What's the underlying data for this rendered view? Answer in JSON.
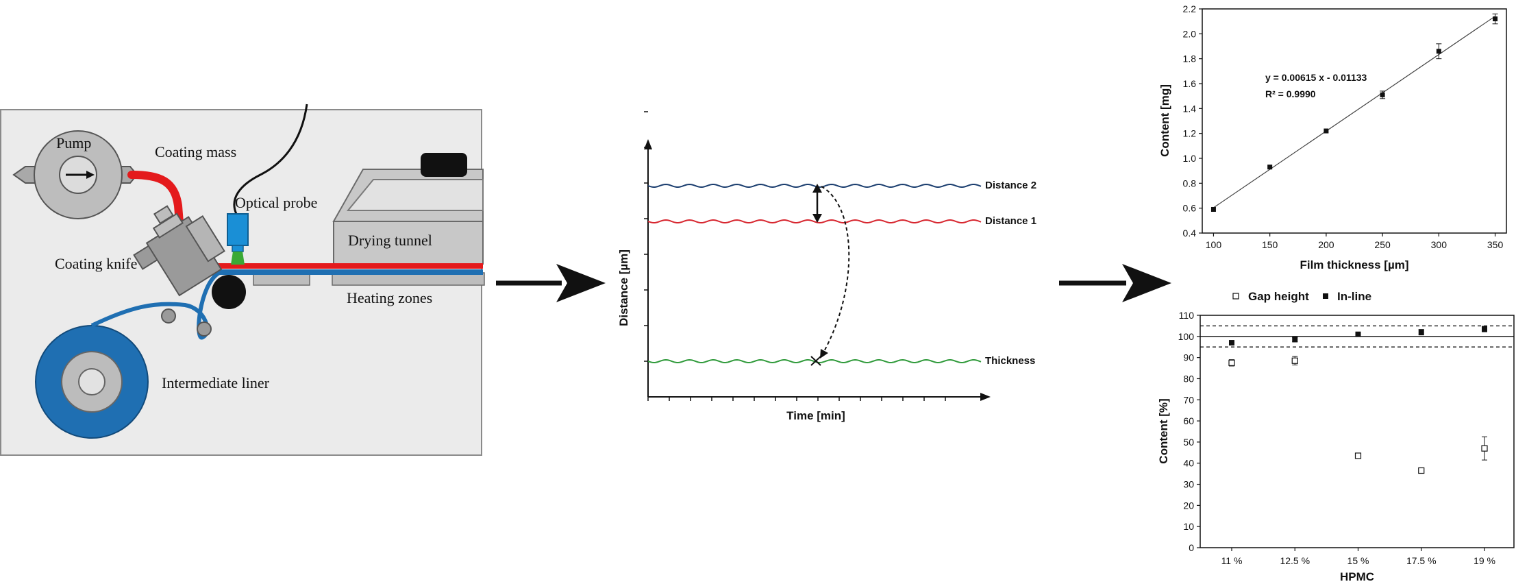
{
  "schematic": {
    "labels": {
      "pump": "Pump",
      "coating_mass": "Coating mass",
      "optical_probe": "Optical probe",
      "drying_tunnel": "Drying tunnel",
      "coating_knife": "Coating knife",
      "heating_zones": "Heating zones",
      "intermediate_liner": "Intermediate liner"
    },
    "colors": {
      "background": "#ebebeb",
      "coating_mass": "#e41a1c",
      "liner": "#1f6fb2",
      "probe": "#1a8fd6",
      "beam": "#3aa935"
    }
  },
  "measurement": {
    "xlabel": "Time [min]",
    "ylabel": "Distance [µm]",
    "lines": [
      {
        "label": "Distance 2",
        "color": "#1a3d6e"
      },
      {
        "label": "Distance 1",
        "color": "#d7262f"
      },
      {
        "label": "Thickness",
        "color": "#2f9a3a"
      }
    ]
  },
  "chart_data": [
    {
      "type": "scatter",
      "xlabel": "Film thickness [µm]",
      "ylabel": "Content [mg]",
      "xlim": [
        90,
        360
      ],
      "ylim": [
        0.4,
        2.2
      ],
      "xticks": [
        100,
        150,
        200,
        250,
        300,
        350
      ],
      "yticks": [
        0.4,
        0.6,
        0.8,
        1.0,
        1.2,
        1.4,
        1.6,
        1.8,
        2.0,
        2.2
      ],
      "x": [
        100,
        150,
        200,
        250,
        300,
        350
      ],
      "y": [
        0.59,
        0.93,
        1.22,
        1.51,
        1.86,
        2.12
      ],
      "yerr": [
        0.01,
        0.01,
        0.01,
        0.03,
        0.06,
        0.04
      ],
      "fit": {
        "slope": 0.00615,
        "intercept": -0.01133
      },
      "annotations": [
        "y = 0.00615 x - 0.01133",
        "R² = 0.9990"
      ],
      "grid": false
    },
    {
      "type": "scatter",
      "xlabel": "HPMC",
      "ylabel": "Content [%]",
      "categories": [
        "11 %",
        "12.5 %",
        "15 %",
        "17.5 %",
        "19 %"
      ],
      "ylim": [
        0,
        110
      ],
      "yticks": [
        0,
        10,
        20,
        30,
        40,
        50,
        60,
        70,
        80,
        90,
        100,
        110
      ],
      "reference_lines": [
        {
          "value": 100,
          "style": "solid"
        },
        {
          "value": 105,
          "style": "dashed"
        },
        {
          "value": 95,
          "style": "dashed"
        }
      ],
      "legend_position": "top",
      "series": [
        {
          "name": "Gap height",
          "marker": "open-square",
          "values": [
            87.5,
            88.5,
            43.5,
            36.5,
            47
          ],
          "err": [
            1.5,
            2,
            1,
            1,
            5.5
          ]
        },
        {
          "name": "In-line",
          "marker": "filled-square",
          "values": [
            97,
            98.5,
            101,
            102,
            103.5
          ],
          "err": [
            1,
            1,
            0.7,
            1.3,
            1.3
          ]
        }
      ],
      "grid": false
    }
  ]
}
